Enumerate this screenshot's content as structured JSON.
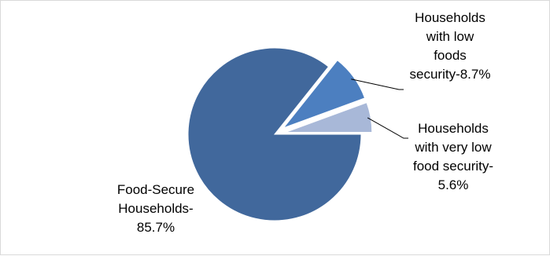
{
  "chart_data": {
    "type": "pie",
    "title": "",
    "slices": [
      {
        "label_lines": [
          "Food-Secure",
          "Households-",
          "85.7%"
        ],
        "value": 85.7,
        "color": "#41689c"
      },
      {
        "label_lines": [
          "Households",
          "with low",
          "foods",
          "security-8.7%"
        ],
        "value": 8.7,
        "color": "#4c7fc0"
      },
      {
        "label_lines": [
          "Households",
          "with very low",
          "food security-",
          "5.6%"
        ],
        "value": 5.6,
        "color": "#a8b8d8"
      }
    ],
    "exploded": true,
    "legend": "none"
  }
}
